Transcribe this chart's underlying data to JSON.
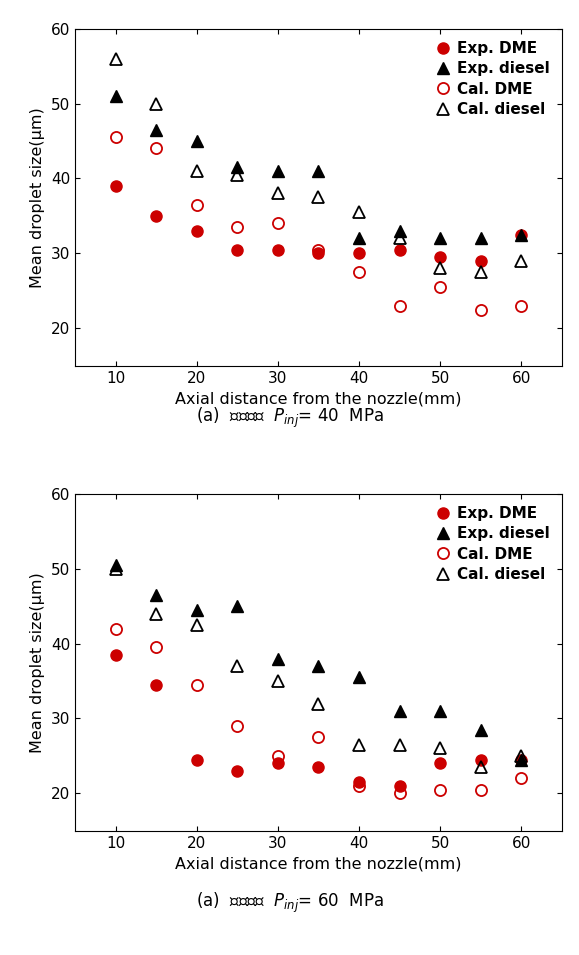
{
  "plot1": {
    "caption": "(a)  분사압력  $P_{inj}$= 40  MPa",
    "exp_dme_x": [
      10,
      15,
      20,
      25,
      30,
      35,
      40,
      45,
      50,
      55,
      60
    ],
    "exp_dme_y": [
      39,
      35,
      33,
      30.5,
      30.5,
      30,
      30,
      30.5,
      29.5,
      29,
      32.5
    ],
    "exp_diesel_x": [
      10,
      15,
      20,
      25,
      30,
      35,
      40,
      45,
      50,
      55,
      60
    ],
    "exp_diesel_y": [
      51,
      46.5,
      45,
      41.5,
      41,
      41,
      32,
      33,
      32,
      32,
      32.5
    ],
    "cal_dme_x": [
      10,
      15,
      20,
      25,
      30,
      35,
      40,
      45,
      50,
      55,
      60
    ],
    "cal_dme_y": [
      45.5,
      44,
      36.5,
      33.5,
      34,
      30.5,
      27.5,
      23,
      25.5,
      22.5,
      23
    ],
    "cal_diesel_x": [
      10,
      15,
      20,
      25,
      30,
      35,
      40,
      45,
      50,
      55,
      60
    ],
    "cal_diesel_y": [
      56,
      50,
      41,
      40.5,
      38,
      37.5,
      35.5,
      32,
      28,
      27.5,
      29
    ]
  },
  "plot2": {
    "caption": "(a)  분사압력  $P_{inj}$= 60  MPa",
    "exp_dme_x": [
      10,
      15,
      20,
      25,
      30,
      35,
      40,
      45,
      50,
      55,
      60
    ],
    "exp_dme_y": [
      38.5,
      34.5,
      24.5,
      23,
      24,
      23.5,
      21.5,
      21,
      24,
      24.5,
      24.5
    ],
    "exp_diesel_x": [
      10,
      15,
      20,
      25,
      30,
      35,
      40,
      45,
      50,
      55,
      60
    ],
    "exp_diesel_y": [
      50.5,
      46.5,
      44.5,
      45,
      38,
      37,
      35.5,
      31,
      31,
      28.5,
      24.5
    ],
    "cal_dme_x": [
      10,
      15,
      20,
      25,
      30,
      35,
      40,
      45,
      50,
      55,
      60
    ],
    "cal_dme_y": [
      42,
      39.5,
      34.5,
      29,
      25,
      27.5,
      21,
      20,
      20.5,
      20.5,
      22
    ],
    "cal_diesel_x": [
      10,
      15,
      20,
      25,
      30,
      35,
      40,
      45,
      50,
      55,
      60
    ],
    "cal_diesel_y": [
      50,
      44,
      42.5,
      37,
      35,
      32,
      26.5,
      26.5,
      26,
      23.5,
      25
    ]
  },
  "xlim": [
    5,
    65
  ],
  "ylim": [
    15,
    60
  ],
  "yticks": [
    20,
    30,
    40,
    50,
    60
  ],
  "xticks": [
    10,
    20,
    30,
    40,
    50,
    60
  ],
  "xlabel": "Axial distance from the nozzle(mm)",
  "ylabel": "Mean droplet size(μm)",
  "exp_dme_color": "#cc0000",
  "exp_diesel_color": "#000000",
  "cal_dme_color": "#cc0000",
  "cal_diesel_color": "#000000",
  "markersize": 8,
  "legend_labels": [
    "Exp. DME",
    "Exp. diesel",
    "Cal. DME",
    "Cal. diesel"
  ]
}
